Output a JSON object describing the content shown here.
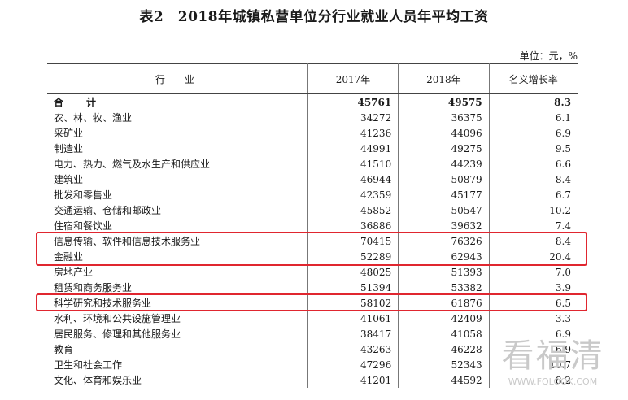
{
  "title": "表2　2018年城镇私营单位分行业就业人员年平均工资",
  "unit": "单位：元，%",
  "headers": {
    "industry": "行　业",
    "y2017": "2017年",
    "y2018": "2018年",
    "growth": "名义增长率"
  },
  "rows": [
    {
      "industry": "合　计",
      "y2017": "45761",
      "y2018": "49575",
      "growth": "8.3"
    },
    {
      "industry": "农、林、牧、渔业",
      "y2017": "34272",
      "y2018": "36375",
      "growth": "6.1"
    },
    {
      "industry": "采矿业",
      "y2017": "41236",
      "y2018": "44096",
      "growth": "6.9"
    },
    {
      "industry": "制造业",
      "y2017": "44991",
      "y2018": "49275",
      "growth": "9.5"
    },
    {
      "industry": "电力、热力、燃气及水生产和供应业",
      "y2017": "41510",
      "y2018": "44239",
      "growth": "6.6"
    },
    {
      "industry": "建筑业",
      "y2017": "46944",
      "y2018": "50879",
      "growth": "8.4"
    },
    {
      "industry": "批发和零售业",
      "y2017": "42359",
      "y2018": "45177",
      "growth": "6.7"
    },
    {
      "industry": "交通运输、仓储和邮政业",
      "y2017": "45852",
      "y2018": "50547",
      "growth": "10.2"
    },
    {
      "industry": "住宿和餐饮业",
      "y2017": "36886",
      "y2018": "39632",
      "growth": "7.4"
    },
    {
      "industry": "信息传输、软件和信息技术服务业",
      "y2017": "70415",
      "y2018": "76326",
      "growth": "8.4"
    },
    {
      "industry": "金融业",
      "y2017": "52289",
      "y2018": "62943",
      "growth": "20.4"
    },
    {
      "industry": "房地产业",
      "y2017": "48025",
      "y2018": "51393",
      "growth": "7.0"
    },
    {
      "industry": "租赁和商务服务业",
      "y2017": "51394",
      "y2018": "53382",
      "growth": "3.9"
    },
    {
      "industry": "科学研究和技术服务业",
      "y2017": "58102",
      "y2018": "61876",
      "growth": "6.5"
    },
    {
      "industry": "水利、环境和公共设施管理业",
      "y2017": "41061",
      "y2018": "42409",
      "growth": "3.3"
    },
    {
      "industry": "居民服务、修理和其他服务业",
      "y2017": "38417",
      "y2018": "41058",
      "growth": "6.9"
    },
    {
      "industry": "教育",
      "y2017": "43263",
      "y2018": "46228",
      "growth": "6.9"
    },
    {
      "industry": "卫生和社会工作",
      "y2017": "47296",
      "y2018": "52343",
      "growth": "10.7"
    },
    {
      "industry": "文化、体育和娱乐业",
      "y2017": "41201",
      "y2018": "44592",
      "growth": "8.2"
    }
  ],
  "highlight_color": "#e0262f",
  "watermark": {
    "logo": "看福清",
    "url": "WWW.FQLOOK.COM"
  }
}
